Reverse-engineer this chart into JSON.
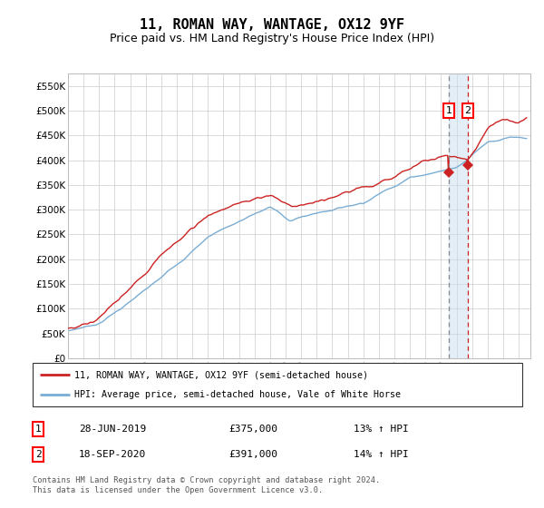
{
  "title": "11, ROMAN WAY, WANTAGE, OX12 9YF",
  "subtitle": "Price paid vs. HM Land Registry's House Price Index (HPI)",
  "ylim": [
    0,
    575000
  ],
  "yticks": [
    0,
    50000,
    100000,
    150000,
    200000,
    250000,
    300000,
    350000,
    400000,
    450000,
    500000,
    550000
  ],
  "ytick_labels": [
    "£0",
    "£50K",
    "£100K",
    "£150K",
    "£200K",
    "£250K",
    "£300K",
    "£350K",
    "£400K",
    "£450K",
    "£500K",
    "£550K"
  ],
  "hpi_color": "#7aadd4",
  "price_color": "#cc2222",
  "marker1_date": 2019.49,
  "marker2_date": 2020.72,
  "marker1_price": 375000,
  "marker2_price": 391000,
  "legend_label1": "11, ROMAN WAY, WANTAGE, OX12 9YF (semi-detached house)",
  "legend_label2": "HPI: Average price, semi-detached house, Vale of White Horse",
  "annotation1_date": "28-JUN-2019",
  "annotation1_price": "£375,000",
  "annotation1_hpi": "13% ↑ HPI",
  "annotation2_date": "18-SEP-2020",
  "annotation2_price": "£391,000",
  "annotation2_hpi": "14% ↑ HPI",
  "footer": "Contains HM Land Registry data © Crown copyright and database right 2024.\nThis data is licensed under the Open Government Licence v3.0.",
  "bg_color": "#ffffff",
  "grid_color": "#cccccc",
  "title_fontsize": 11,
  "subtitle_fontsize": 9
}
